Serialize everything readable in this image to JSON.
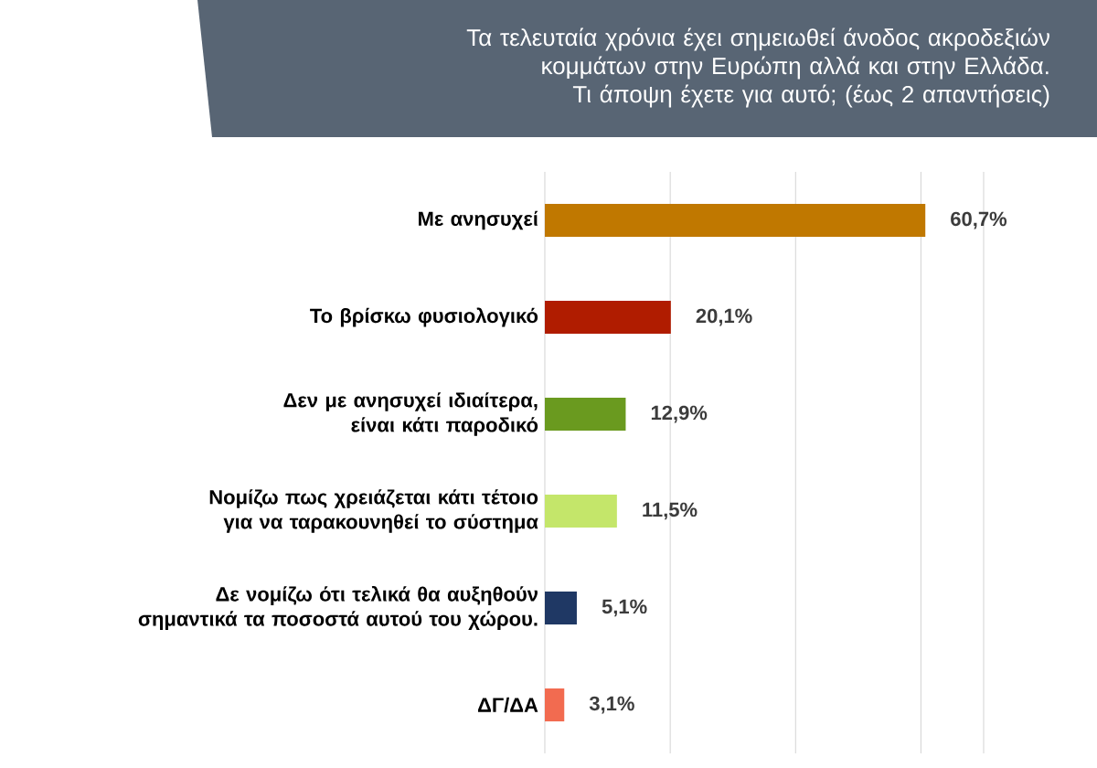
{
  "chart_data": {
    "type": "bar",
    "orientation": "horizontal",
    "title": "Τα τελευταία χρόνια έχει σημειωθεί άνοδος ακροδεξιών κομμάτων στην Ευρώπη αλλά και  στην Ελλάδα. Τι άποψη έχετε για αυτό; (έως 2 απαντήσεις)",
    "categories": [
      "Με ανησυχεί",
      "Το βρίσκω φυσιολογικό",
      "Δεν με ανησυχεί ιδιαίτερα, είναι κάτι παροδικό",
      "Νομίζω πως χρειάζεται κάτι τέτοιο για να ταρακουνηθεί το σύστημα",
      "Δε νομίζω ότι τελικά θα αυξηθούν σημαντικά τα ποσοστά αυτού του χώρου.",
      "ΔΓ/ΔΑ"
    ],
    "values": [
      60.7,
      20.1,
      12.9,
      11.5,
      5.1,
      3.1
    ],
    "value_labels": [
      "60,7%",
      "20,1%",
      "12,9%",
      "11,5%",
      "5,1%",
      "3,1%"
    ],
    "colors": [
      "#c07800",
      "#b01c00",
      "#6a9a1f",
      "#c4e66a",
      "#1f3864",
      "#f26b50"
    ],
    "xlim": [
      0,
      70
    ],
    "xticks": [
      {
        "value": 0,
        "label": null
      },
      {
        "value": 20,
        "label": null
      },
      {
        "value": 40,
        "label": null
      },
      {
        "value": 60,
        "label": null
      },
      {
        "value": 70,
        "label": null
      }
    ],
    "tick_labels": "y",
    "grid": "x"
  }
}
